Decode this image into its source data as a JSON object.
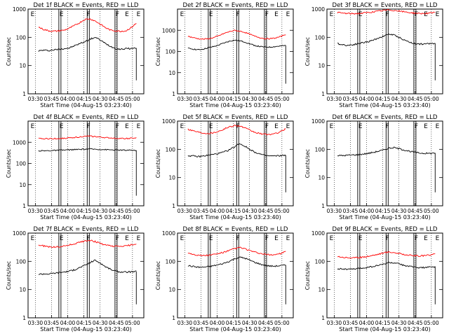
{
  "figure": {
    "xlabel": "Start Time (04-Aug-15 03:23:40)",
    "ylabel": "Counts/sec",
    "x_ticks": [
      "03:30",
      "03:45",
      "04:00",
      "04:15",
      "04:30",
      "04:45",
      "05:00"
    ],
    "y_ticks": [
      "1",
      "10",
      "100",
      "1000"
    ],
    "colors": {
      "events": "#000000",
      "lld": "#ff0000"
    },
    "flag_labels": [
      "E",
      "F",
      "E"
    ]
  },
  "chart_data": [
    {
      "type": "line",
      "title": "Det 1f BLACK = Events, RED = LLD",
      "yscale": "log",
      "ylim": [
        1,
        1000
      ],
      "series": [
        {
          "role": "events",
          "values": [
            33,
            35,
            34,
            36,
            38,
            40,
            42,
            50,
            60,
            70,
            85,
            100,
            80,
            60,
            48,
            40,
            38,
            40,
            40,
            42
          ]
        },
        {
          "role": "lld",
          "values": [
            230,
            190,
            170,
            165,
            170,
            180,
            210,
            260,
            330,
            430,
            450,
            380,
            290,
            220,
            180,
            170,
            165,
            170,
            220,
            310
          ]
        }
      ]
    },
    {
      "type": "line",
      "title": "Det 2f BLACK = Events, RED = LLD",
      "yscale": "log",
      "ylim": [
        1,
        10000
      ],
      "series": [
        {
          "role": "events",
          "values": [
            140,
            130,
            120,
            130,
            150,
            170,
            200,
            250,
            300,
            340,
            320,
            280,
            230,
            190,
            170,
            160,
            160,
            170,
            180,
            190
          ]
        },
        {
          "role": "lld",
          "values": [
            520,
            450,
            400,
            380,
            400,
            450,
            550,
            700,
            850,
            980,
            920,
            800,
            650,
            520,
            450,
            400,
            400,
            430,
            500,
            650
          ]
        }
      ]
    },
    {
      "type": "line",
      "title": "Det 3f BLACK = Events, RED = LLD",
      "yscale": "log",
      "ylim": [
        1,
        1000
      ],
      "series": [
        {
          "role": "events",
          "values": [
            60,
            55,
            52,
            55,
            60,
            65,
            70,
            80,
            95,
            110,
            130,
            120,
            100,
            80,
            68,
            60,
            58,
            58,
            60,
            62
          ]
        },
        {
          "role": "lld",
          "values": [
            760,
            720,
            700,
            690,
            700,
            720,
            760,
            800,
            850,
            900,
            940,
            900,
            850,
            800,
            760,
            720,
            700,
            700,
            720,
            760
          ]
        }
      ]
    },
    {
      "type": "line",
      "title": "Det 4f BLACK = Events, RED = LLD",
      "yscale": "log",
      "ylim": [
        1,
        10000
      ],
      "series": [
        {
          "role": "events",
          "values": [
            400,
            395,
            400,
            410,
            420,
            430,
            440,
            450,
            460,
            470,
            480,
            470,
            460,
            450,
            440,
            430,
            425,
            420,
            420,
            415
          ]
        },
        {
          "role": "lld",
          "values": [
            1500,
            1480,
            1470,
            1480,
            1500,
            1550,
            1600,
            1700,
            1800,
            1900,
            1950,
            1850,
            1750,
            1650,
            1600,
            1550,
            1520,
            1500,
            1550,
            1600
          ]
        }
      ]
    },
    {
      "type": "line",
      "title": "Det 5f BLACK = Events, RED = LLD",
      "yscale": "log",
      "ylim": [
        1,
        1000
      ],
      "series": [
        {
          "role": "events",
          "values": [
            60,
            58,
            55,
            58,
            62,
            66,
            72,
            80,
            95,
            120,
            160,
            130,
            100,
            80,
            68,
            60,
            58,
            58,
            60,
            62
          ]
        },
        {
          "role": "lld",
          "values": [
            520,
            460,
            410,
            380,
            370,
            390,
            440,
            520,
            620,
            700,
            680,
            580,
            470,
            400,
            360,
            340,
            340,
            360,
            420,
            530
          ]
        }
      ]
    },
    {
      "type": "line",
      "title": "Det 6f BLACK = Events, RED = LLD",
      "yscale": "log",
      "ylim": [
        1,
        1000
      ],
      "series": [
        {
          "role": "events",
          "values": [
            60,
            60,
            62,
            63,
            65,
            68,
            72,
            78,
            86,
            95,
            110,
            115,
            105,
            95,
            86,
            78,
            74,
            72,
            72,
            74
          ]
        }
      ]
    },
    {
      "type": "line",
      "title": "Det 7f BLACK = Events, RED = LLD",
      "yscale": "log",
      "ylim": [
        1,
        1000
      ],
      "series": [
        {
          "role": "events",
          "values": [
            35,
            36,
            36,
            38,
            40,
            42,
            45,
            50,
            60,
            72,
            90,
            110,
            85,
            65,
            52,
            45,
            42,
            42,
            42,
            44
          ]
        },
        {
          "role": "lld",
          "values": [
            380,
            350,
            330,
            320,
            330,
            350,
            380,
            420,
            470,
            530,
            560,
            500,
            430,
            380,
            350,
            340,
            340,
            350,
            380,
            420
          ]
        }
      ]
    },
    {
      "type": "line",
      "title": "Det 8f BLACK = Events, RED = LLD",
      "yscale": "log",
      "ylim": [
        1,
        1000
      ],
      "series": [
        {
          "role": "events",
          "values": [
            70,
            66,
            62,
            62,
            65,
            70,
            76,
            85,
            100,
            120,
            140,
            130,
            110,
            92,
            80,
            72,
            68,
            68,
            70,
            74
          ]
        },
        {
          "role": "lld",
          "values": [
            200,
            180,
            165,
            160,
            165,
            175,
            190,
            210,
            240,
            280,
            310,
            280,
            240,
            210,
            190,
            175,
            170,
            175,
            190,
            220
          ]
        }
      ]
    },
    {
      "type": "line",
      "title": "Det 9f BLACK = Events, RED = LLD",
      "yscale": "log",
      "ylim": [
        1,
        1000
      ],
      "series": [
        {
          "role": "events",
          "values": [
            55,
            54,
            52,
            53,
            55,
            58,
            62,
            66,
            72,
            80,
            90,
            88,
            80,
            72,
            66,
            62,
            60,
            60,
            62,
            64
          ]
        },
        {
          "role": "lld",
          "values": [
            150,
            140,
            135,
            132,
            135,
            142,
            152,
            165,
            180,
            200,
            215,
            205,
            190,
            175,
            165,
            158,
            155,
            158,
            170,
            190
          ]
        }
      ]
    }
  ]
}
